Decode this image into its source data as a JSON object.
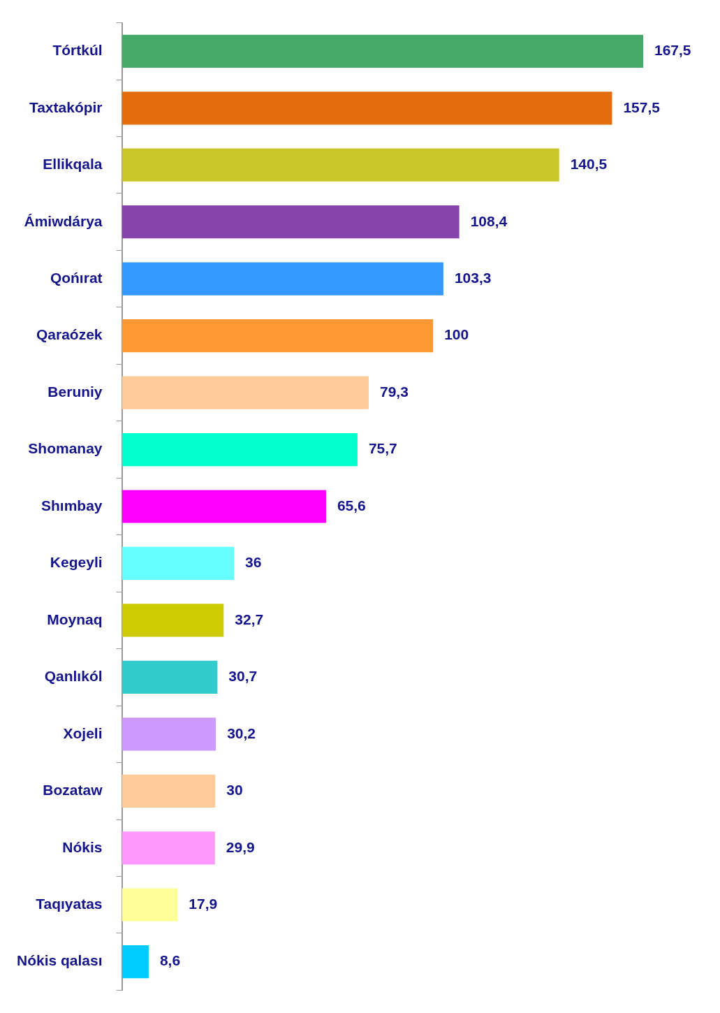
{
  "chart_data": {
    "type": "bar",
    "orientation": "horizontal",
    "categories": [
      "Tórtkúl",
      "Taxtakópir",
      "Ellikqala",
      "Ámiwdárya",
      "Qońırat",
      "Qaraózek",
      "Beruniy",
      "Shomanay",
      "Shımbay",
      "Kegeyli",
      "Moynaq",
      "Qanlıkól",
      "Xojeli",
      "Bozataw",
      "Nókis",
      "Taqıyatas",
      "Nókis qalası"
    ],
    "values": [
      167.5,
      157.5,
      140.5,
      108.4,
      103.3,
      100,
      79.3,
      75.7,
      65.6,
      36,
      32.7,
      30.7,
      30.2,
      30,
      29.9,
      17.9,
      8.6
    ],
    "colors": [
      "#47a96a",
      "#e46c0a",
      "#c8c628",
      "#8645ad",
      "#3399ff",
      "#ff9933",
      "#ffcc99",
      "#00ffcc",
      "#ff00ff",
      "#66ffff",
      "#cccc00",
      "#33cccc",
      "#cc99ff",
      "#ffcc99",
      "#ff99ff",
      "#ffff99",
      "#00ccff"
    ],
    "value_labels": [
      "167,5",
      "157,5",
      "140,5",
      "108,4",
      "103,3",
      "100",
      "79,3",
      "75,7",
      "65,6",
      "36",
      "32,7",
      "30,7",
      "30,2",
      "30",
      "29,9",
      "17,9",
      "8,6"
    ],
    "tick_labels": "y"
  }
}
